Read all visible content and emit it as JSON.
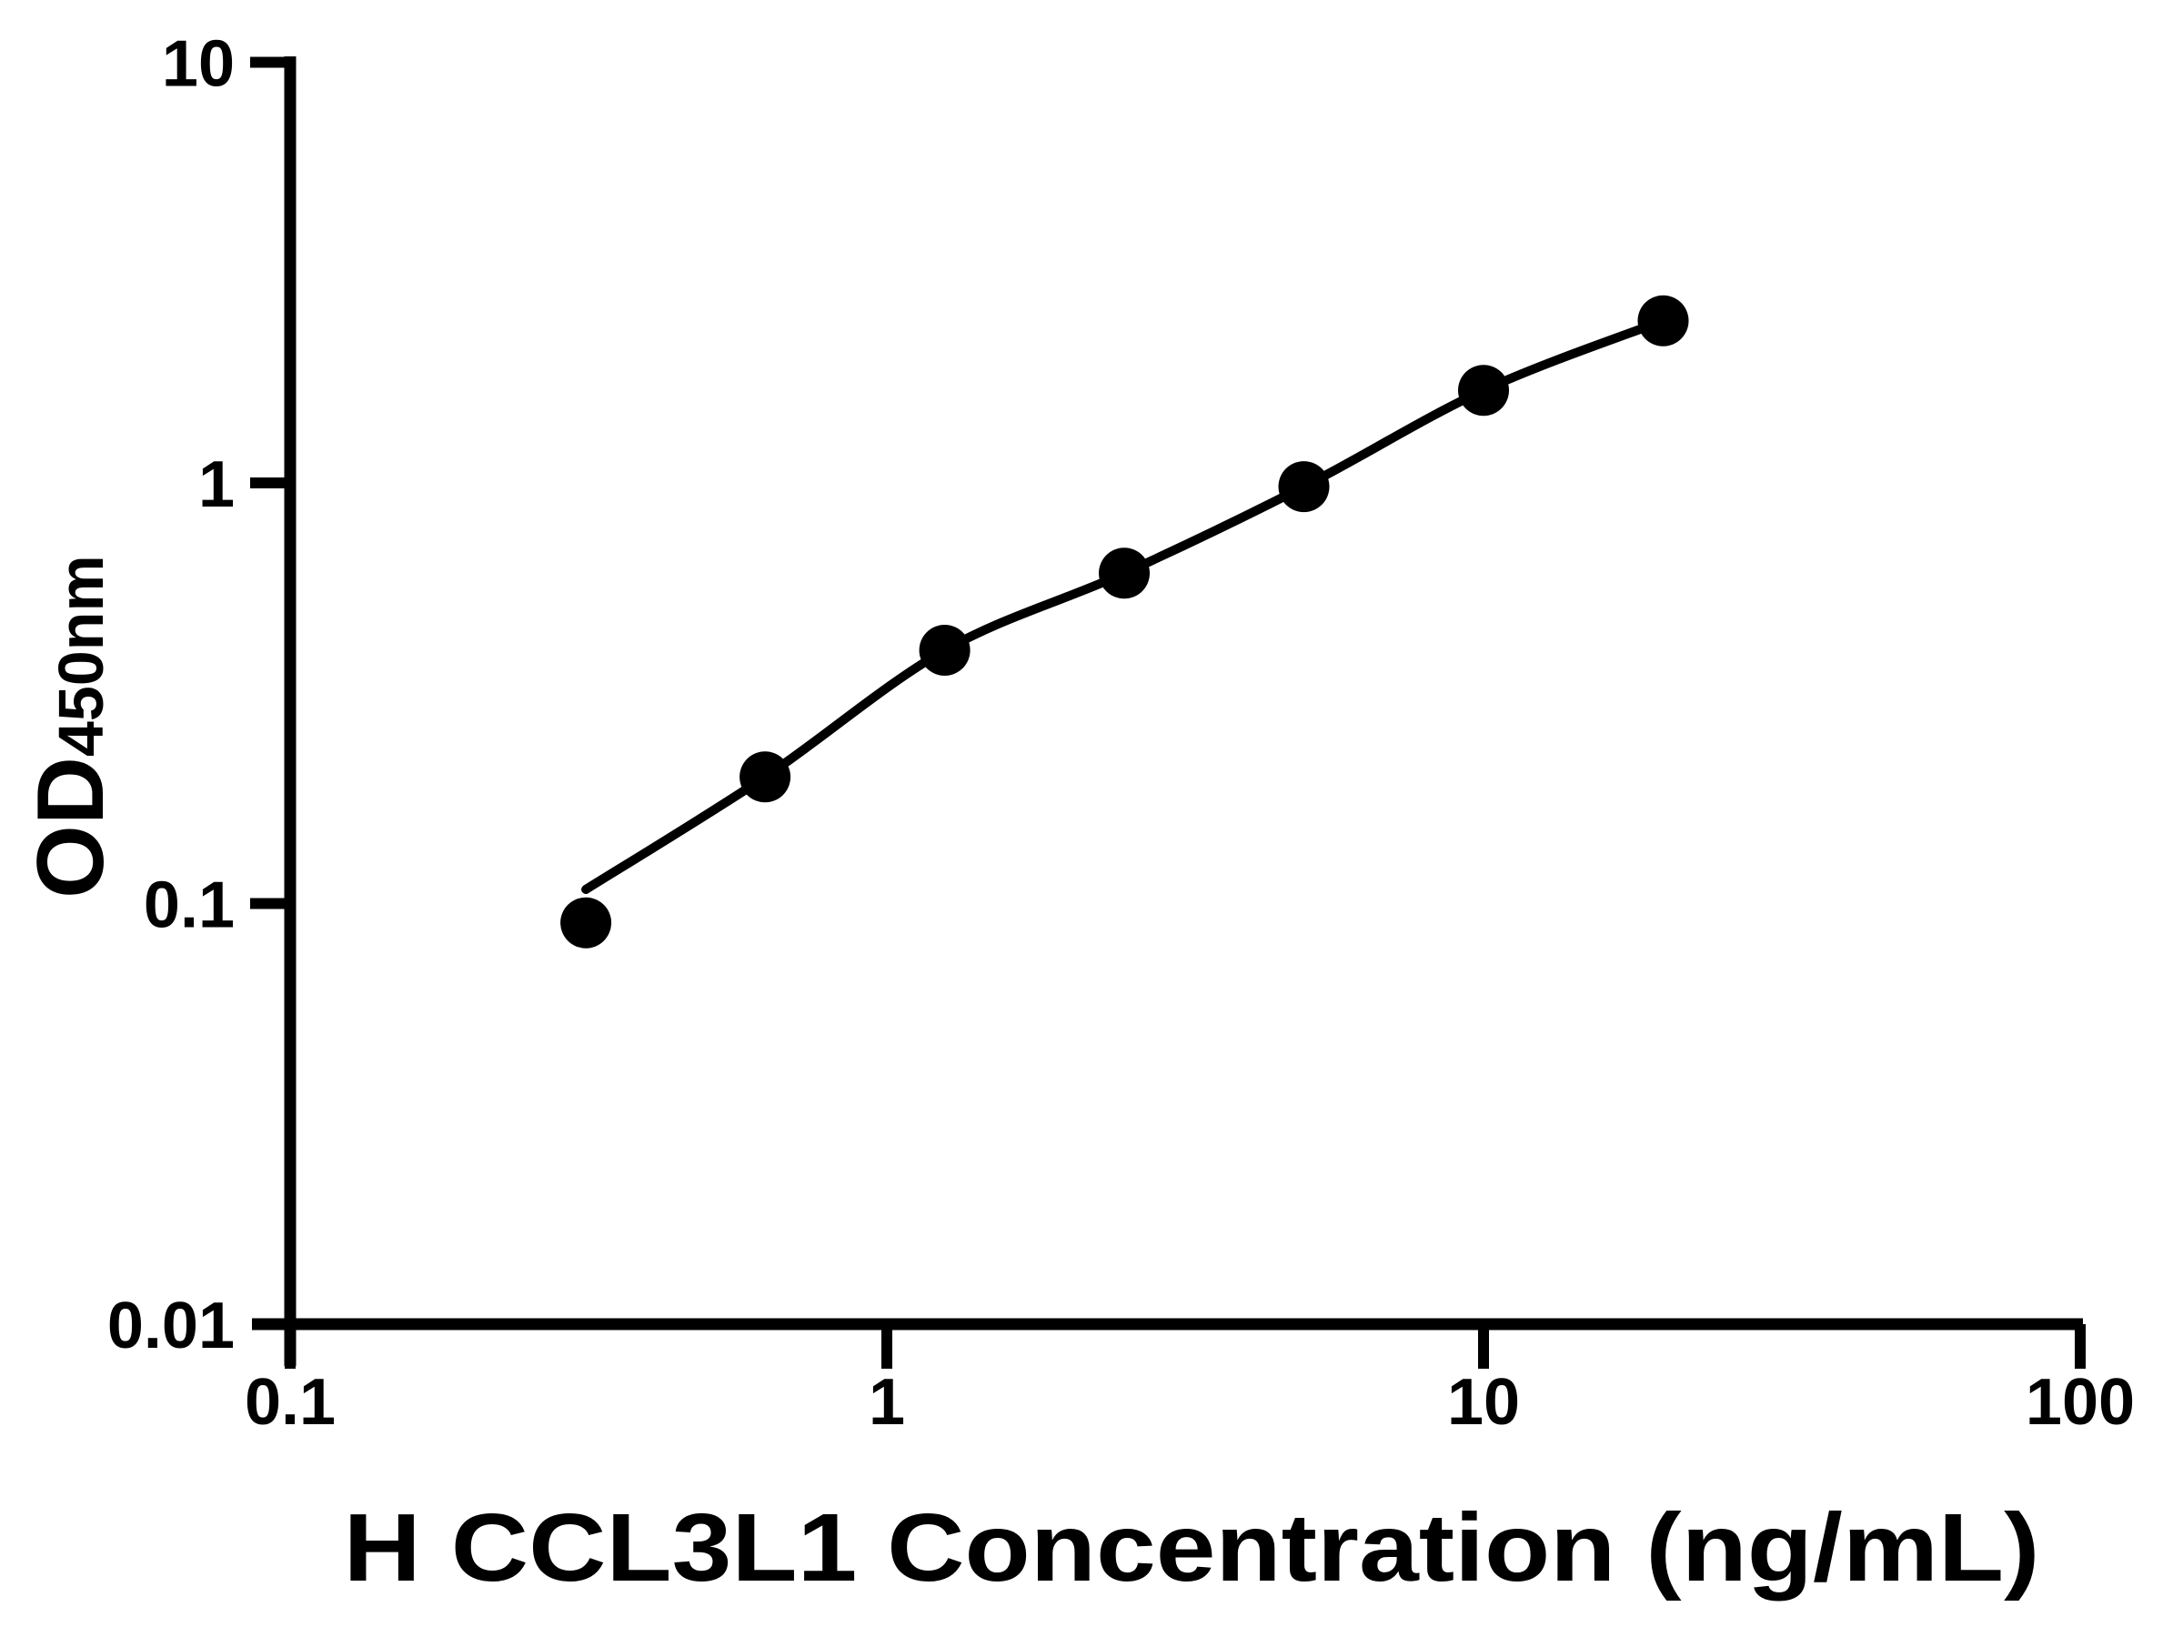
{
  "figure": {
    "background_color": "#ffffff"
  },
  "chart_data": {
    "type": "scatter",
    "title": "",
    "xlabel": "H CCL3L1 Concentration (ng/mL)",
    "ylabel": "OD",
    "ylabel_subscript": "450nm",
    "x_axis": {
      "scale": "log",
      "range": [
        0.1,
        100
      ],
      "ticks": [
        0.1,
        1,
        10,
        100
      ],
      "tick_labels": [
        "0.1",
        "1",
        "10",
        "100"
      ]
    },
    "y_axis": {
      "scale": "log",
      "range": [
        0.01,
        10
      ],
      "ticks": [
        0.01,
        0.1,
        1,
        10
      ],
      "tick_labels": [
        "0.01",
        "0.1",
        "1",
        "10"
      ]
    },
    "grid": false,
    "legend": null,
    "marker_color": "#000000",
    "line_color": "#000000",
    "points": [
      {
        "conc": 0.313,
        "od": 0.09
      },
      {
        "conc": 0.625,
        "od": 0.2
      },
      {
        "conc": 1.25,
        "od": 0.4
      },
      {
        "conc": 2.5,
        "od": 0.61
      },
      {
        "conc": 5,
        "od": 0.98
      },
      {
        "conc": 10,
        "od": 1.66
      },
      {
        "conc": 20,
        "od": 2.43
      }
    ],
    "fit_curve_points": [
      {
        "conc": 0.313,
        "od": 0.108
      },
      {
        "conc": 0.625,
        "od": 0.2
      },
      {
        "conc": 1.25,
        "od": 0.4
      },
      {
        "conc": 2.5,
        "od": 0.61
      },
      {
        "conc": 5,
        "od": 0.98
      },
      {
        "conc": 10,
        "od": 1.66
      },
      {
        "conc": 20,
        "od": 2.43
      }
    ]
  }
}
